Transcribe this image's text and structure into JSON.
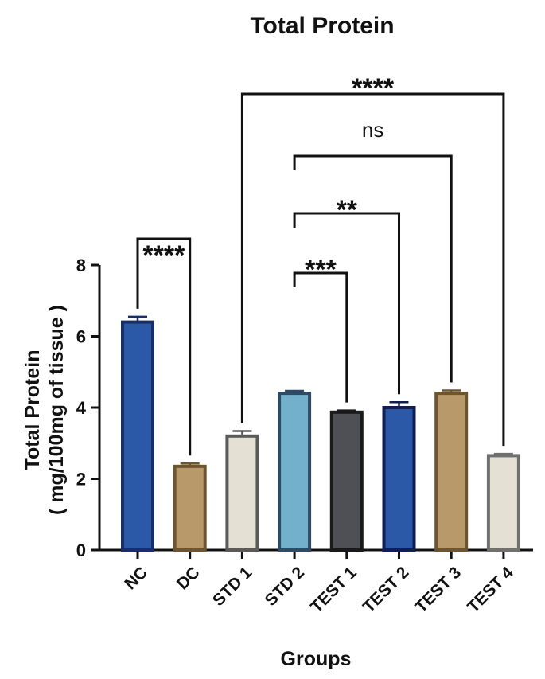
{
  "chart_data": {
    "type": "bar",
    "title": "Total Protein",
    "xlabel": "Groups",
    "ylabel": [
      "Total Protein",
      "( mg/100mg of tissue )"
    ],
    "ylim": [
      0,
      8
    ],
    "yticks": [
      0,
      2,
      4,
      6,
      8
    ],
    "categories": [
      "NC",
      "DC",
      "STD 1",
      "STD 2",
      "TEST 1",
      "TEST 2",
      "TEST 3",
      "TEST 4"
    ],
    "values": [
      6.4,
      2.35,
      3.2,
      4.4,
      3.87,
      4.0,
      4.4,
      2.65
    ],
    "errors": [
      0.15,
      0.08,
      0.14,
      0.07,
      0.05,
      0.15,
      0.08,
      0.05
    ],
    "colors": {
      "fill": [
        "#2c58a8",
        "#b89a6a",
        "#e4e0d4",
        "#72b0cb",
        "#4e5056",
        "#2c58a8",
        "#b89a6a",
        "#e4e0d4"
      ],
      "stroke": [
        "#1a2e66",
        "#6e5530",
        "#5a5a5a",
        "#2e4a64",
        "#1a1a1a",
        "#121e50",
        "#6e5530",
        "#707070"
      ]
    },
    "grid": false,
    "legend": "none",
    "comparisons": [
      {
        "from": "NC",
        "to": "DC",
        "label": "****"
      },
      {
        "from": "STD 2",
        "to": "TEST 1",
        "label": "***"
      },
      {
        "from": "STD 2",
        "to": "TEST 2",
        "label": "**"
      },
      {
        "from": "STD 2",
        "to": "TEST 3",
        "label": "ns"
      },
      {
        "from": "STD 1",
        "to": "TEST 4",
        "label": "****"
      }
    ]
  }
}
